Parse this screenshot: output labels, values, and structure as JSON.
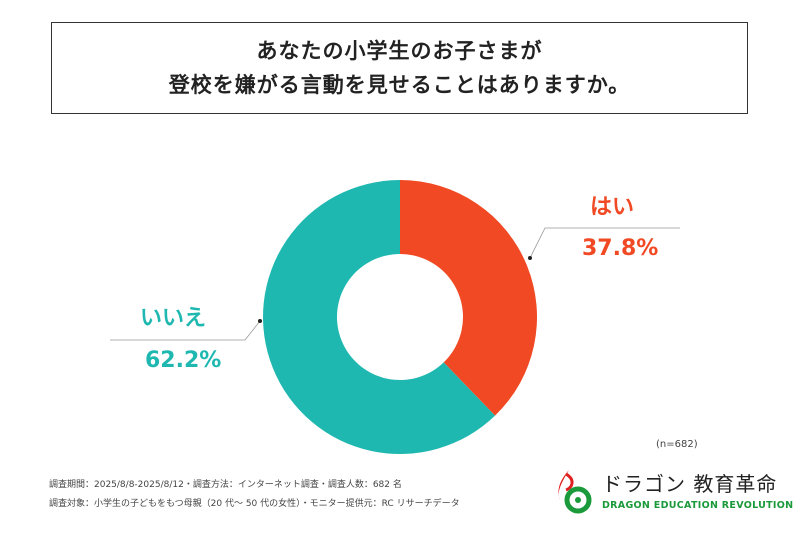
{
  "title": {
    "line1": "あなたの小学生のお子さまが",
    "line2": "登校を嫌がる言動を見せることはありますか。"
  },
  "chart_data": {
    "type": "pie",
    "style": "donut",
    "categories": [
      "はい",
      "いいえ"
    ],
    "values": [
      37.8,
      62.2
    ],
    "value_labels": [
      "37.8%",
      "62.2%"
    ],
    "colors": [
      "#F04923",
      "#1FB8B0"
    ],
    "sample_note": "(n=682)"
  },
  "footer": {
    "line1": "調査期間：2025/8/8-2025/8/12・調査方法：インターネット調査・調査人数：682 名",
    "line2": "調査対象：小学生の子どもをもつ母親（20 代～ 50 代の女性）・モニター提供元：RC リサーチデータ"
  },
  "logo": {
    "jp": "ドラゴン 教育革命",
    "en": "DRAGON EDUCATION REVOLUTION"
  }
}
